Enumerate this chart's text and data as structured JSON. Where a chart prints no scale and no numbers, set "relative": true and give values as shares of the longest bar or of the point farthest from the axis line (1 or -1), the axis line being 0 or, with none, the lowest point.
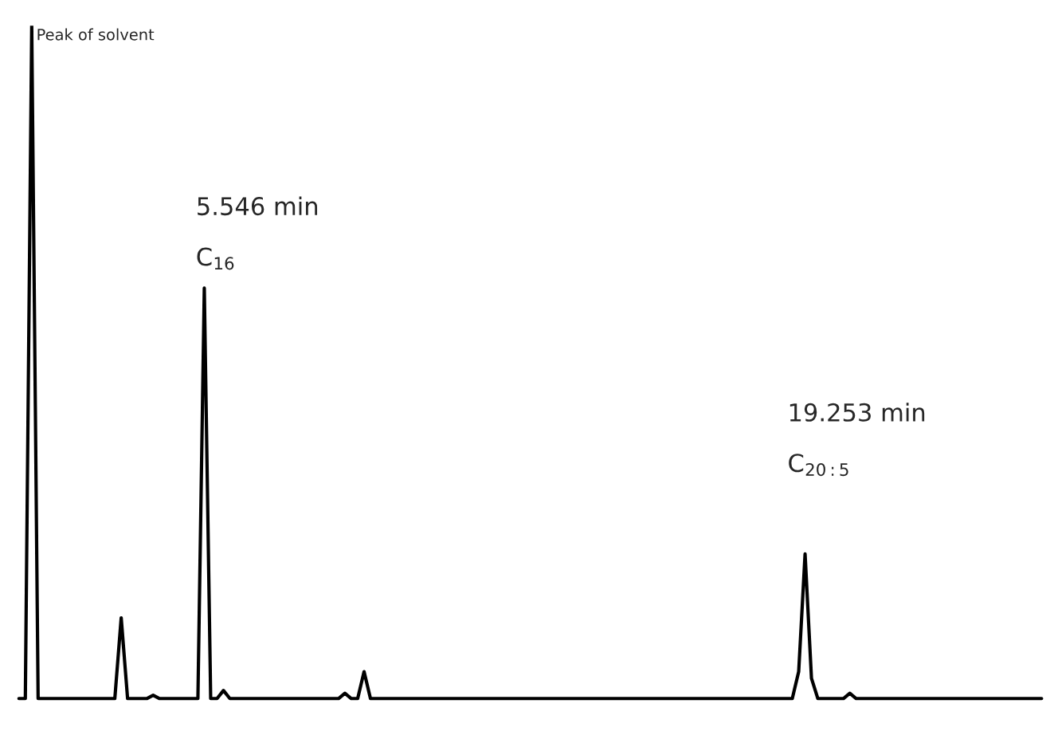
{
  "chart_data": {
    "type": "line",
    "relative": true,
    "color": "#000000",
    "legend": false,
    "marker": "none",
    "line_style": "solid",
    "categories": [
      null,
      null,
      null,
      null,
      null,
      null,
      null,
      null,
      null,
      null,
      null,
      null,
      null,
      null,
      null,
      null,
      null,
      null,
      null,
      null,
      null,
      null,
      null,
      null,
      null,
      null,
      null,
      null,
      null,
      null,
      null,
      null,
      null,
      null,
      null,
      null,
      null,
      null,
      null,
      null,
      null,
      null,
      null,
      null,
      null,
      null,
      null,
      null,
      null,
      null,
      null,
      null,
      null,
      null,
      null,
      null,
      null,
      null,
      null,
      null,
      null,
      null,
      null,
      null,
      null,
      null,
      null,
      null,
      null,
      null,
      null,
      null,
      null,
      null,
      null,
      null,
      null,
      null,
      null,
      null,
      null,
      null,
      null,
      null,
      null,
      null,
      null,
      null,
      null,
      null,
      null,
      null,
      null,
      null,
      null,
      null,
      null,
      null,
      null,
      null,
      null,
      null,
      null,
      null,
      null,
      null,
      null,
      null,
      null,
      null,
      null,
      null,
      null,
      null,
      null,
      null,
      null,
      null,
      null,
      null,
      null,
      null,
      null,
      null,
      null,
      null,
      null,
      null,
      null,
      null,
      null,
      null,
      null,
      null,
      null,
      null,
      null,
      null,
      null,
      null,
      null,
      null,
      null,
      null,
      null,
      null,
      null,
      null,
      null,
      null,
      null,
      null,
      null,
      null,
      null,
      null,
      null,
      null,
      null,
      null,
      null
    ],
    "values": [
      0,
      0,
      1,
      0,
      0,
      0,
      0,
      0,
      0,
      0,
      0,
      0,
      0,
      0,
      0,
      0,
      0.12,
      0,
      0,
      0,
      0,
      0.005,
      0,
      0,
      0,
      0,
      0,
      0,
      0,
      0.61,
      0,
      0,
      0.012,
      0,
      0,
      0,
      0,
      0,
      0,
      0,
      0,
      0,
      0,
      0,
      0,
      0,
      0,
      0,
      0,
      0,
      0,
      0.008,
      0,
      0,
      0.04,
      0,
      0,
      0,
      0,
      0,
      0,
      0,
      0,
      0,
      0,
      0,
      0,
      0,
      0,
      0,
      0,
      0,
      0,
      0,
      0,
      0,
      0,
      0,
      0,
      0,
      0,
      0,
      0,
      0,
      0,
      0,
      0,
      0,
      0,
      0,
      0,
      0,
      0,
      0,
      0,
      0,
      0,
      0,
      0,
      0,
      0,
      0,
      0,
      0,
      0,
      0,
      0,
      0,
      0,
      0,
      0,
      0,
      0,
      0,
      0,
      0,
      0,
      0,
      0,
      0,
      0,
      0,
      0.04,
      0.215,
      0.03,
      0,
      0,
      0,
      0,
      0,
      0.008,
      0,
      0,
      0,
      0,
      0,
      0,
      0,
      0,
      0,
      0,
      0,
      0,
      0,
      0,
      0,
      0,
      0,
      0,
      0,
      0,
      0,
      0,
      0,
      0,
      0,
      0,
      0,
      0,
      0,
      0
    ],
    "annotations": [
      "Peak of solvent",
      "5.546 min",
      "C$_{16}$",
      "19.253 min",
      "C$_{20:5}$"
    ]
  }
}
